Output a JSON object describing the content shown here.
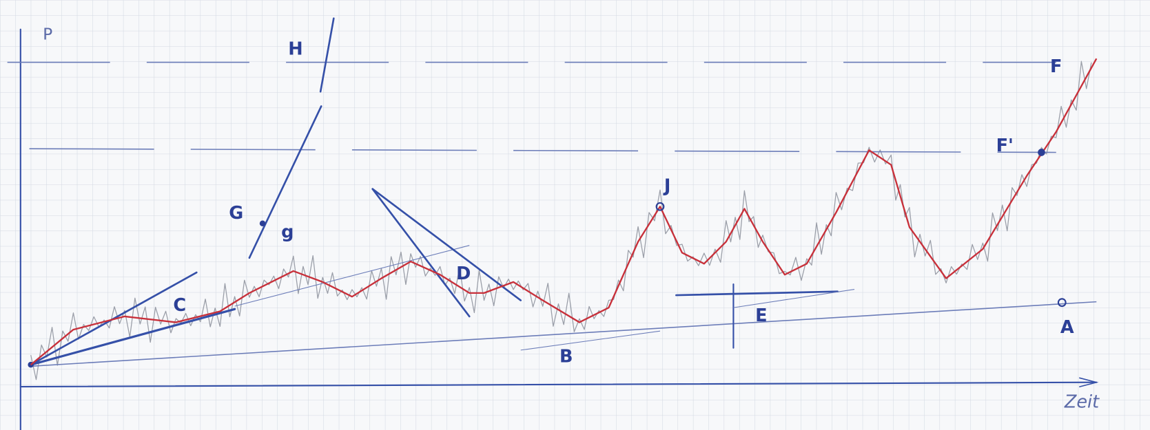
{
  "axes": {
    "y_label": "P",
    "x_label": "Zeit"
  },
  "labels": {
    "a": "A",
    "b": "B",
    "c": "C",
    "d": "D",
    "e": "E",
    "f": "F",
    "f_prime": "F'",
    "g": "G",
    "g_small": "g",
    "h": "H",
    "j": "J"
  }
}
